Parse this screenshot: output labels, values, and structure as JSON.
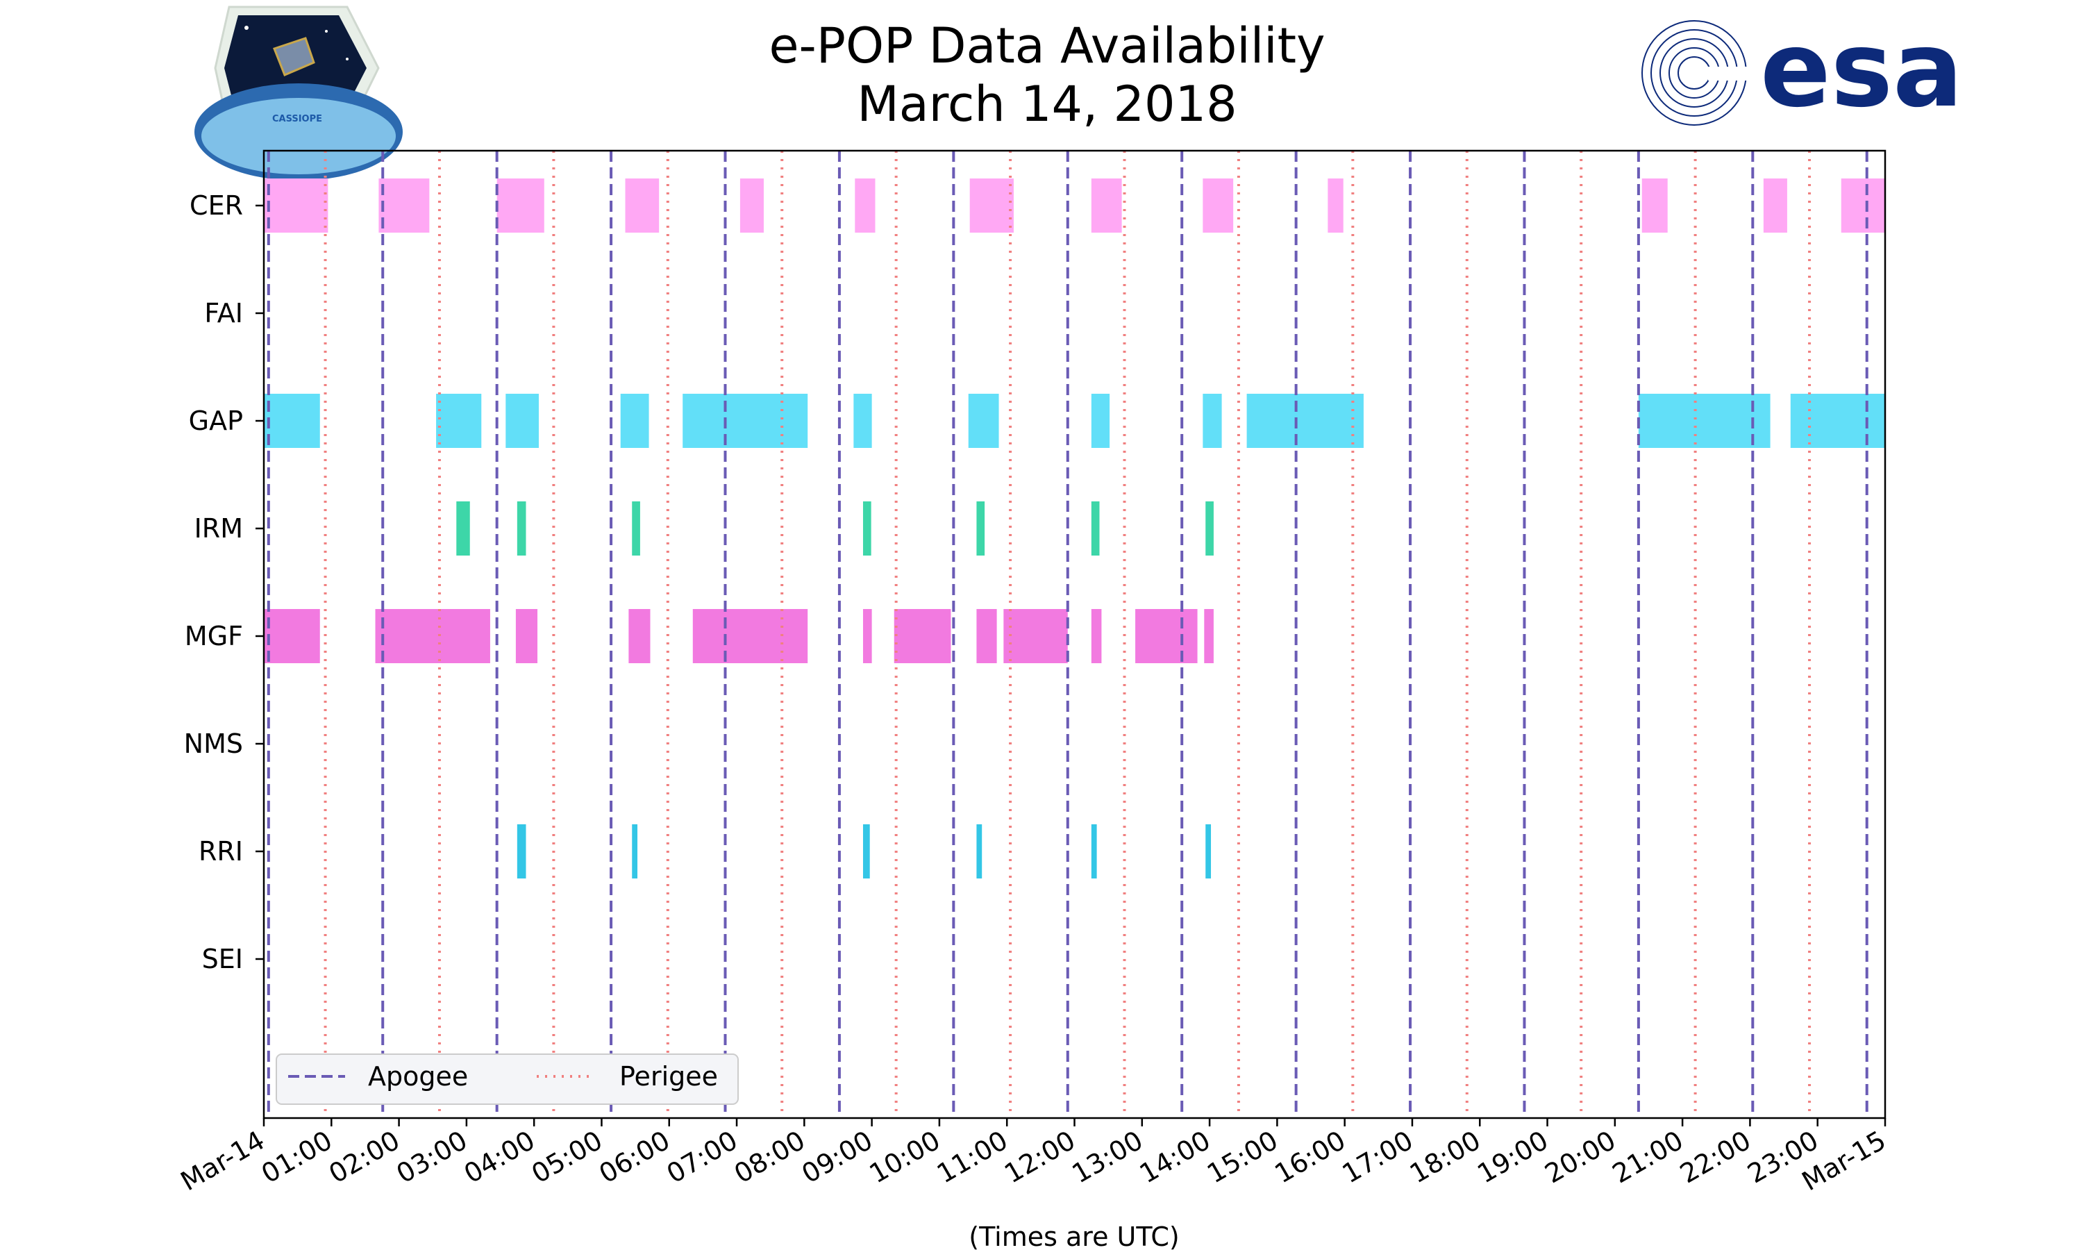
{
  "chart_data": {
    "type": "timeline",
    "title": "e-POP Data Availability",
    "subtitle": "March 14, 2018",
    "xlabel": "(Times are UTC)",
    "ylabel": "",
    "xlim_hours": [
      0,
      24
    ],
    "x_tick_labels": [
      "Mar-14",
      "01:00",
      "02:00",
      "03:00",
      "04:00",
      "05:00",
      "06:00",
      "07:00",
      "08:00",
      "09:00",
      "10:00",
      "11:00",
      "12:00",
      "13:00",
      "14:00",
      "15:00",
      "16:00",
      "17:00",
      "18:00",
      "19:00",
      "20:00",
      "21:00",
      "22:00",
      "23:00",
      "Mar-15"
    ],
    "instruments": [
      "CER",
      "FAI",
      "GAP",
      "IRM",
      "MGF",
      "NMS",
      "RRI",
      "SEI"
    ],
    "colors": {
      "CER": "#ffa8f4",
      "GAP": "#62dff8",
      "IRM": "#3dd6a8",
      "MGF": "#f27ae0",
      "RRI": "#33c6e6",
      "apogee": "#6a5bb5",
      "perigee": "#f08080",
      "axis": "#000000"
    },
    "intervals": {
      "CER": [
        [
          0.0,
          0.95
        ],
        [
          1.7,
          2.45
        ],
        [
          3.45,
          4.15
        ],
        [
          5.35,
          5.85
        ],
        [
          7.05,
          7.4
        ],
        [
          8.75,
          9.05
        ],
        [
          10.45,
          11.1
        ],
        [
          12.25,
          12.7
        ],
        [
          13.9,
          14.35
        ],
        [
          15.75,
          15.98
        ],
        [
          20.4,
          20.78
        ],
        [
          22.2,
          22.55
        ],
        [
          23.35,
          24.0
        ]
      ],
      "FAI": [],
      "GAP": [
        [
          0.0,
          0.83
        ],
        [
          2.55,
          3.22
        ],
        [
          3.58,
          4.07
        ],
        [
          5.28,
          5.7
        ],
        [
          6.2,
          8.05
        ],
        [
          8.73,
          9.0
        ],
        [
          10.43,
          10.88
        ],
        [
          12.25,
          12.52
        ],
        [
          13.9,
          14.18
        ],
        [
          14.55,
          16.28
        ],
        [
          20.35,
          22.3
        ],
        [
          22.6,
          24.0
        ]
      ],
      "IRM": [
        [
          2.85,
          3.05
        ],
        [
          3.75,
          3.88
        ],
        [
          5.45,
          5.57
        ],
        [
          8.87,
          8.99
        ],
        [
          10.55,
          10.67
        ],
        [
          12.25,
          12.37
        ],
        [
          13.94,
          14.06
        ]
      ],
      "MGF": [
        [
          0.0,
          0.83
        ],
        [
          1.65,
          3.35
        ],
        [
          3.73,
          4.05
        ],
        [
          5.4,
          5.72
        ],
        [
          6.35,
          8.05
        ],
        [
          8.87,
          9.0
        ],
        [
          9.33,
          10.17
        ],
        [
          10.55,
          10.85
        ],
        [
          10.95,
          11.9
        ],
        [
          12.25,
          12.4
        ],
        [
          12.9,
          13.82
        ],
        [
          13.92,
          14.06
        ]
      ],
      "NMS": [],
      "RRI": [
        [
          3.75,
          3.88
        ],
        [
          5.45,
          5.53
        ],
        [
          8.87,
          8.97
        ],
        [
          10.55,
          10.63
        ],
        [
          12.25,
          12.33
        ],
        [
          13.94,
          14.02
        ]
      ],
      "SEI": []
    },
    "apogee_hours": [
      0.07,
      1.76,
      3.45,
      5.14,
      6.83,
      8.52,
      10.21,
      11.9,
      13.59,
      15.28,
      16.97,
      18.66,
      20.35,
      22.04,
      23.73
    ],
    "perigee_hours": [
      0.91,
      2.6,
      4.29,
      5.98,
      7.67,
      9.36,
      11.05,
      12.74,
      14.43,
      16.12,
      17.81,
      19.5,
      21.19,
      22.88
    ],
    "legend": {
      "position": "lower-left",
      "entries": [
        "Apogee",
        "Perigee"
      ]
    }
  },
  "logos": {
    "left": {
      "icon": "cassiope-mission-icon",
      "text": "CASSIOPE"
    },
    "right": {
      "icon": "esa-logo",
      "text": "esa"
    }
  }
}
